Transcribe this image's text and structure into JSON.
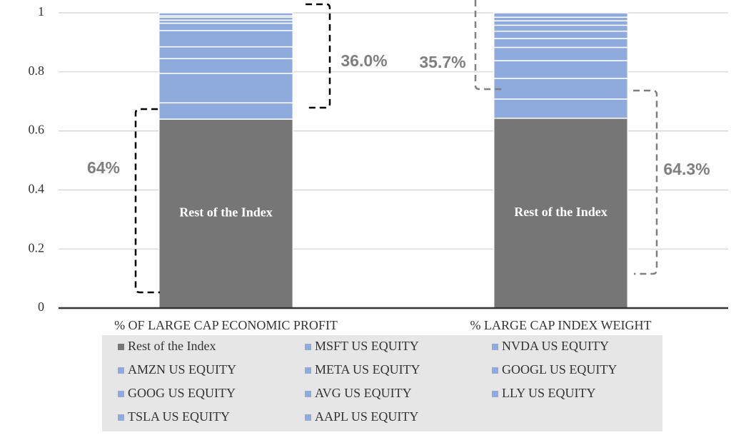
{
  "chart_data": {
    "type": "stacked_bar",
    "categories": [
      "% OF LARGE CAP ECONOMIC PROFIT",
      "% LARGE CAP INDEX WEIGHT"
    ],
    "series": [
      {
        "name": "Rest of the Index",
        "color": "#767676",
        "values": [
          0.64,
          0.643
        ]
      },
      {
        "name": "MSFT US EQUITY",
        "color": "#8faadc",
        "values": [
          0.055,
          0.065
        ]
      },
      {
        "name": "NVDA US EQUITY",
        "color": "#8faadc",
        "values": [
          0.1,
          0.07
        ]
      },
      {
        "name": "AMZN US EQUITY",
        "color": "#8faadc",
        "values": [
          0.05,
          0.06
        ]
      },
      {
        "name": "META US EQUITY",
        "color": "#8faadc",
        "values": [
          0.04,
          0.045
        ]
      },
      {
        "name": "GOOGL US EQUITY",
        "color": "#8faadc",
        "values": [
          0.055,
          0.03
        ]
      },
      {
        "name": "GOOG US EQUITY",
        "color": "#8faadc",
        "values": [
          0.025,
          0.025
        ]
      },
      {
        "name": "AVG US EQUITY",
        "color": "#8faadc",
        "values": [
          0.01,
          0.02
        ]
      },
      {
        "name": "LLY  US EQUITY",
        "color": "#8faadc",
        "values": [
          0.01,
          0.015
        ]
      },
      {
        "name": "TSLA US EQUITY",
        "color": "#8faadc",
        "values": [
          0.005,
          0.012
        ]
      },
      {
        "name": "AAPL US EQUITY",
        "color": "#8faadc",
        "values": [
          0.01,
          0.015
        ]
      }
    ],
    "annotations": [
      "36.0%",
      "64%",
      "35.7%",
      "64.3%"
    ],
    "ylim": [
      0,
      1
    ],
    "yticks": [
      0,
      0.2,
      0.4,
      0.6,
      0.8,
      1
    ],
    "grid": true
  }
}
